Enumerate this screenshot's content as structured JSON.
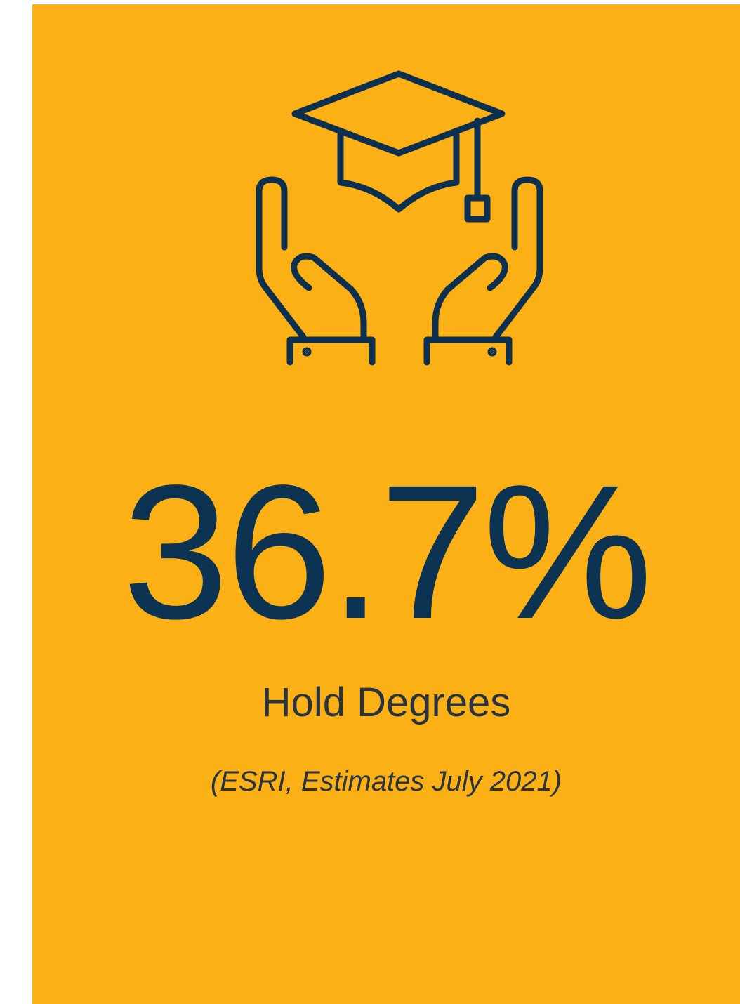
{
  "card": {
    "stat": "36.7%",
    "label": "Hold Degrees",
    "source": "(ESRI, Estimates July 2021)"
  }
}
